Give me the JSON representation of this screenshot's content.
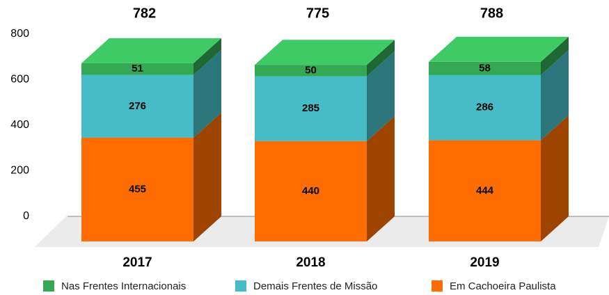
{
  "chart_data": {
    "type": "bar3d_stacked",
    "categories": [
      "2017",
      "2018",
      "2019"
    ],
    "totals": [
      782,
      775,
      788
    ],
    "series": [
      {
        "name": "Nas Frentes Internacionais",
        "color": "#34a853",
        "values": [
          51,
          50,
          58
        ]
      },
      {
        "name": "Demais Frentes de Missão",
        "color": "#46bdc6",
        "values": [
          276,
          285,
          286
        ]
      },
      {
        "name": "Em Cachoeira Paulista",
        "color": "#ff6d01",
        "values": [
          455,
          440,
          444
        ]
      }
    ],
    "ylim": [
      0,
      800
    ],
    "yticks": [
      0,
      200,
      400,
      600,
      800
    ]
  }
}
